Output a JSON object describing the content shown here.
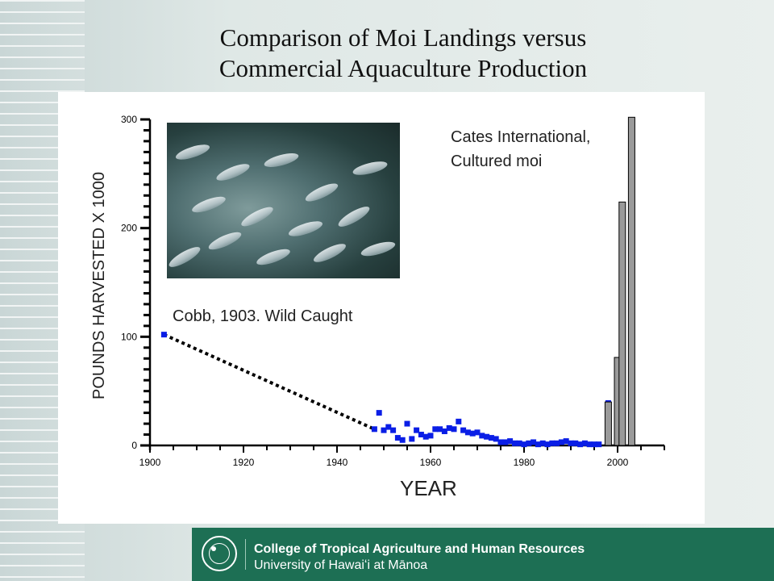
{
  "slide": {
    "title_line1": "Comparison of Moi Landings versus",
    "title_line2": "Commercial Aquaculture Production"
  },
  "photo": {
    "icon": "school-of-fish-photo"
  },
  "chart_data": {
    "type": "scatter",
    "xlabel": "YEAR",
    "ylabel": "POUNDS HARVESTED X 1000",
    "xlim": [
      1900,
      2010
    ],
    "ylim": [
      0,
      300
    ],
    "x_ticks": [
      1900,
      1920,
      1940,
      1960,
      1980,
      2000
    ],
    "y_ticks": [
      0,
      100,
      200,
      300
    ],
    "annotations": [
      "Cates International,",
      "Cultured moi",
      "Cobb, 1903. Wild Caught"
    ],
    "series": [
      {
        "kind": "dashed-line",
        "color": "#000000",
        "points": [
          [
            1903,
            102
          ],
          [
            1948,
            15
          ]
        ]
      },
      {
        "kind": "scatter",
        "color": "#0a1ee6",
        "points": [
          [
            1903,
            102
          ],
          [
            1948,
            15
          ],
          [
            1949,
            30
          ],
          [
            1950,
            14
          ],
          [
            1951,
            17
          ],
          [
            1952,
            14
          ],
          [
            1953,
            7
          ],
          [
            1954,
            5
          ],
          [
            1955,
            20
          ],
          [
            1956,
            6
          ],
          [
            1957,
            14
          ],
          [
            1958,
            10
          ],
          [
            1959,
            8
          ],
          [
            1960,
            9
          ],
          [
            1961,
            15
          ],
          [
            1962,
            15
          ],
          [
            1963,
            13
          ],
          [
            1964,
            16
          ],
          [
            1965,
            15
          ],
          [
            1966,
            22
          ],
          [
            1967,
            14
          ],
          [
            1968,
            12
          ],
          [
            1969,
            11
          ],
          [
            1970,
            12
          ],
          [
            1971,
            9
          ],
          [
            1972,
            8
          ],
          [
            1973,
            7
          ],
          [
            1974,
            6
          ],
          [
            1975,
            3
          ],
          [
            1976,
            3
          ],
          [
            1977,
            4
          ],
          [
            1978,
            2
          ],
          [
            1979,
            2
          ],
          [
            1980,
            1
          ],
          [
            1981,
            2
          ],
          [
            1982,
            3
          ],
          [
            1983,
            1
          ],
          [
            1984,
            2
          ],
          [
            1985,
            1
          ],
          [
            1986,
            2
          ],
          [
            1987,
            2
          ],
          [
            1988,
            3
          ],
          [
            1989,
            4
          ],
          [
            1990,
            2
          ],
          [
            1991,
            2
          ],
          [
            1992,
            1
          ],
          [
            1993,
            2
          ],
          [
            1994,
            1
          ],
          [
            1995,
            1
          ],
          [
            1996,
            1
          ],
          [
            1998,
            39
          ]
        ]
      },
      {
        "kind": "bar",
        "color": "#9a9a9a",
        "points": [
          [
            1998,
            40
          ],
          [
            2000,
            81
          ],
          [
            2001,
            224
          ],
          [
            2003,
            302
          ]
        ]
      }
    ]
  },
  "footer": {
    "line1": "College of Tropical Agriculture and Human Resources",
    "line2": "University of Hawaiʻi at Mānoa",
    "color": "#1d6f54"
  }
}
